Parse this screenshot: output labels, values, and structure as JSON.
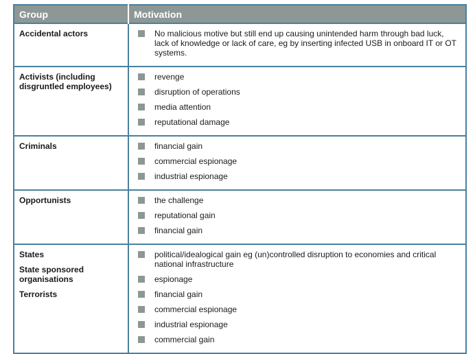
{
  "header": {
    "group": "Group",
    "motivation": "Motivation"
  },
  "bullet_color": "#8d9795",
  "border_color": "#4a7fa0",
  "rows": [
    {
      "groups": [
        "Accidental actors"
      ],
      "motivations": [
        "No malicious motive but still end up causing unintended harm through bad luck, lack of knowledge or lack of care, eg by inserting infected USB in onboard IT or OT systems."
      ],
      "h": 61
    },
    {
      "groups": [
        "Activists (including disgruntled employees)"
      ],
      "motivations": [
        "revenge",
        "disruption of operations",
        "media attention",
        "reputational damage"
      ],
      "h": 94
    },
    {
      "groups": [
        "Criminals"
      ],
      "motivations": [
        "financial gain",
        "commercial espionage",
        "industrial espionage"
      ],
      "h": 73
    },
    {
      "groups": [
        "Opportunists"
      ],
      "motivations": [
        "the challenge",
        "reputational gain",
        "financial gain"
      ],
      "h": 73
    },
    {
      "groups": [
        "States",
        "State sponsored organisations",
        "Terrorists"
      ],
      "motivations": [
        "political/idealogical gain eg (un)controlled disruption to economies and critical national infrastructure",
        "espionage",
        "financial gain",
        "commercial espionage",
        "industrial espionage",
        "commercial gain"
      ],
      "h": 154
    }
  ]
}
